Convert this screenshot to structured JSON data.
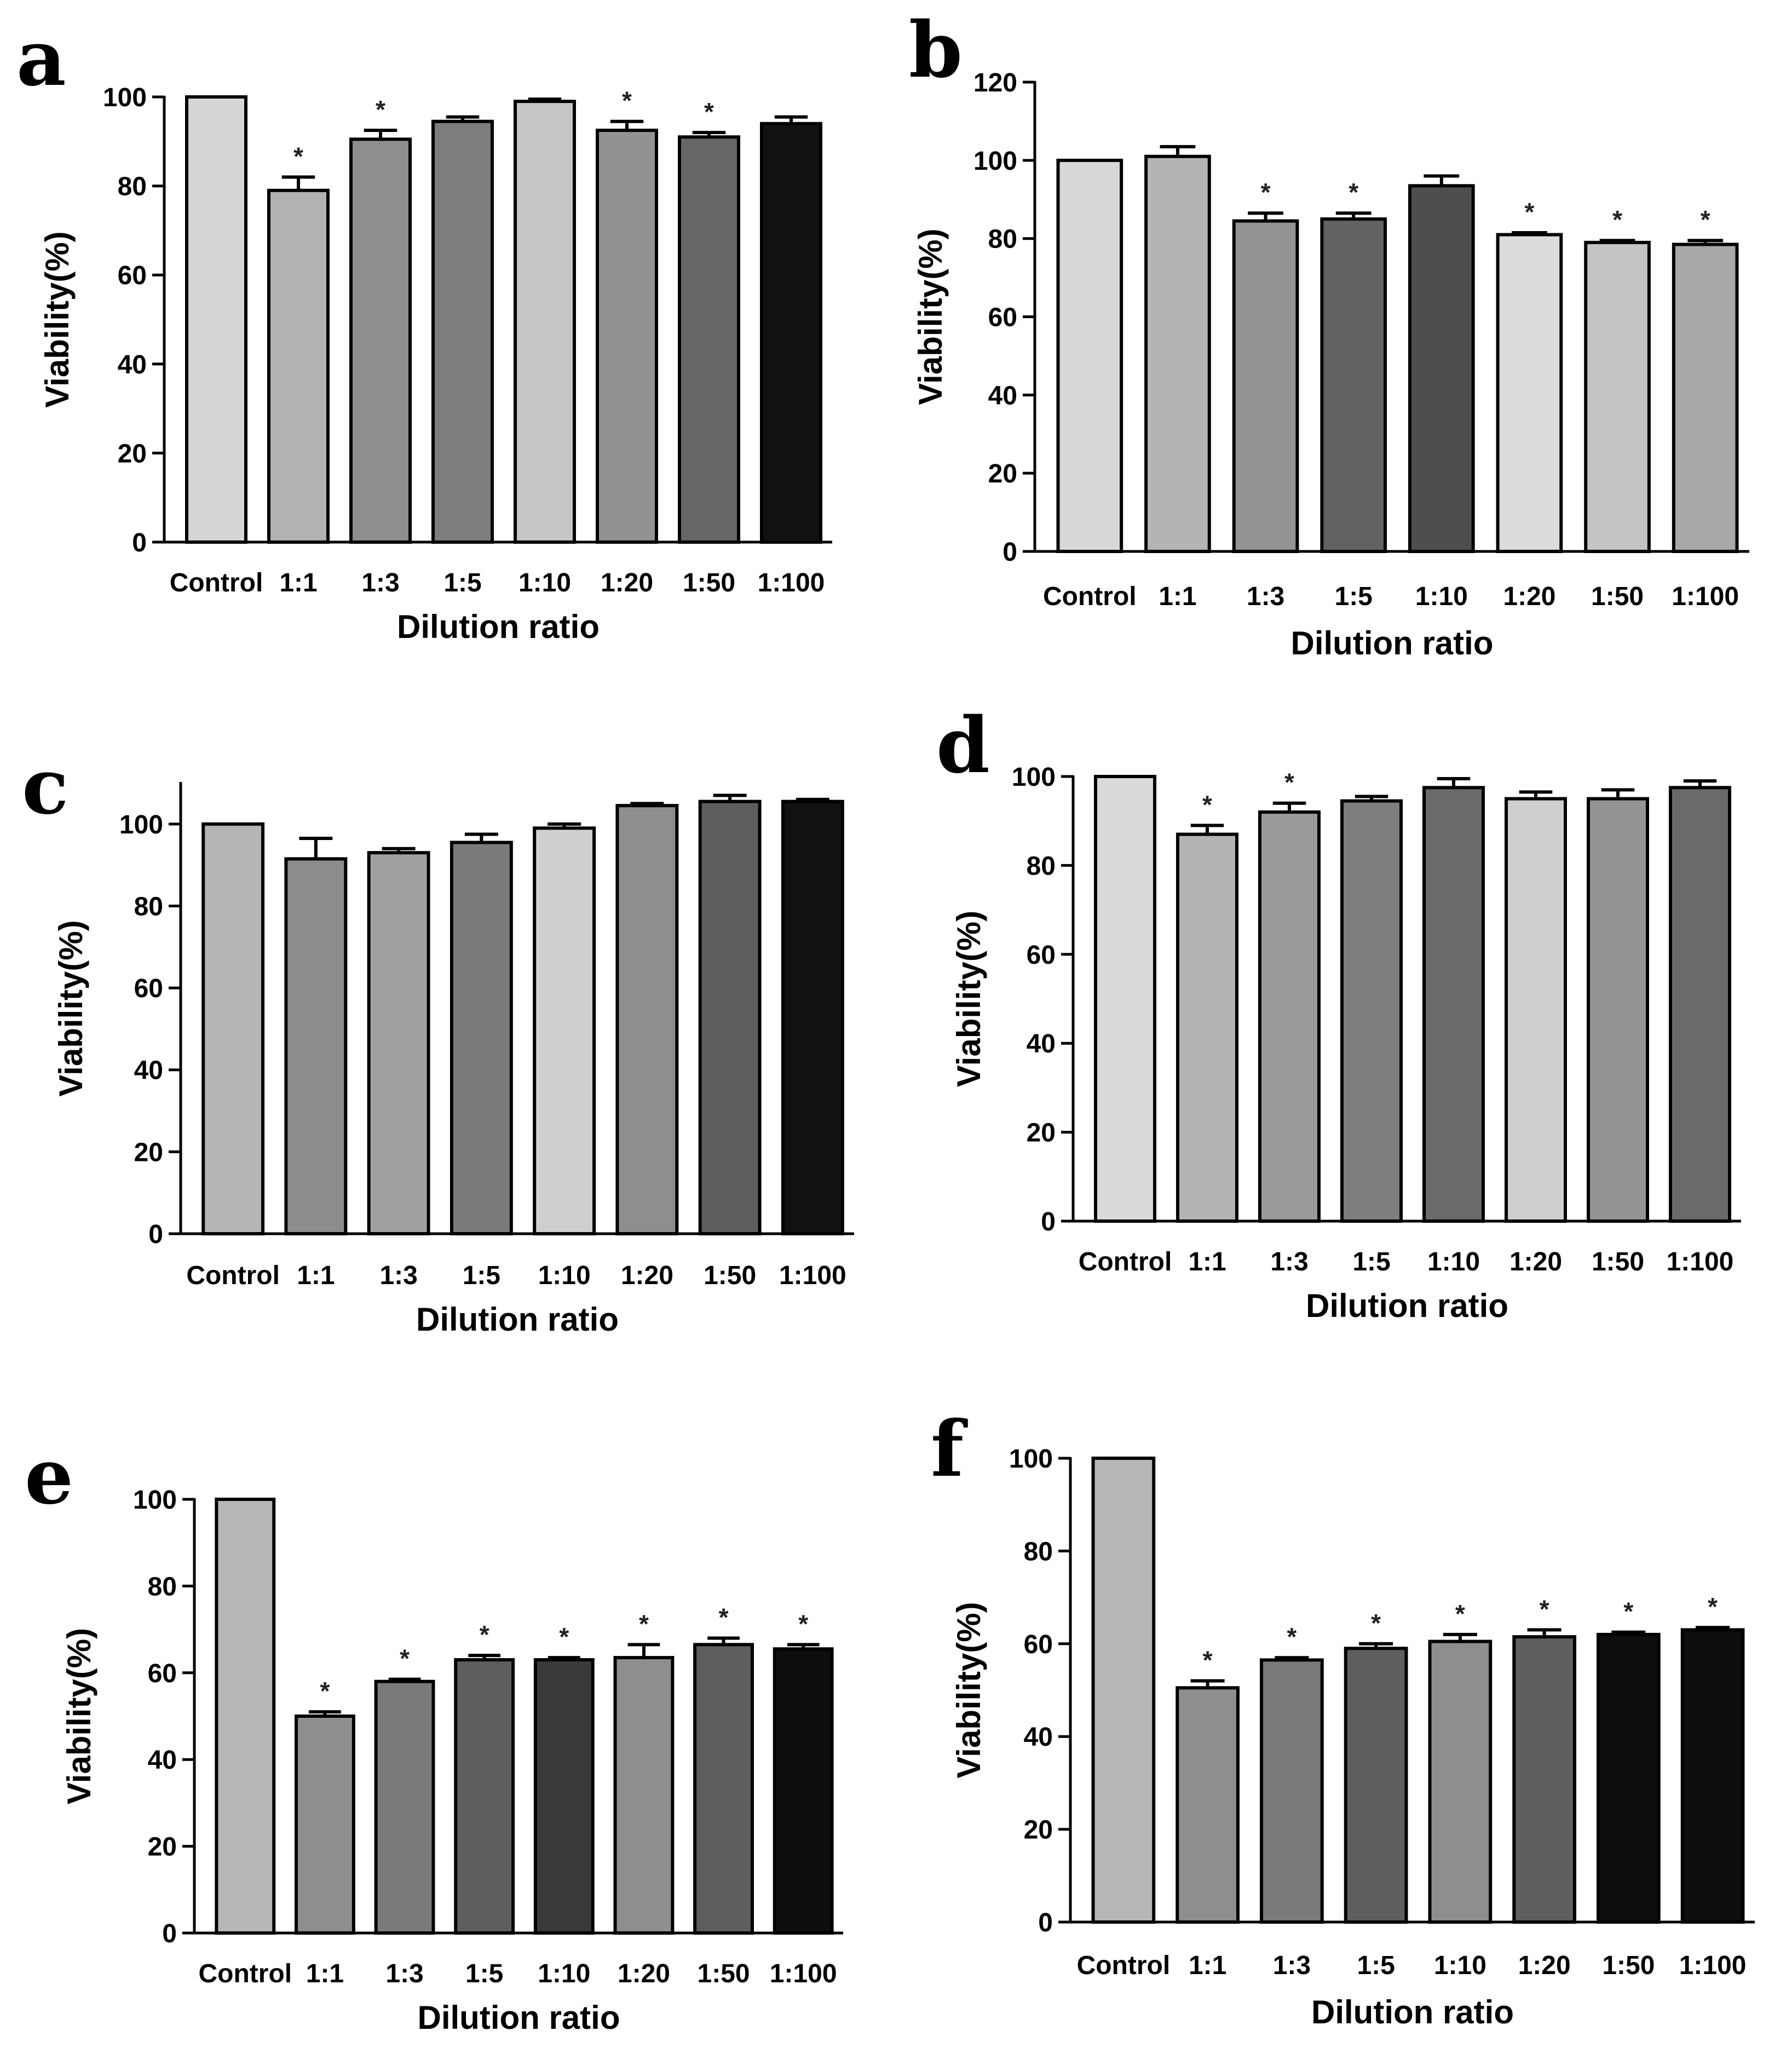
{
  "chart_data": [
    {
      "type": "bar",
      "panel": "a",
      "xlabel": "Dilution ratio",
      "ylabel": "Viability(%)",
      "ylim": [
        0,
        100
      ],
      "yticks": [
        0,
        20,
        40,
        60,
        80,
        100
      ],
      "categories": [
        "Control",
        "1:1",
        "1:3",
        "1:5",
        "1:10",
        "1:20",
        "1:50",
        "1:100"
      ],
      "values": [
        100,
        79,
        90.5,
        94.5,
        99,
        92.5,
        91,
        94
      ],
      "errors": [
        0,
        3,
        2,
        1,
        0.5,
        2,
        1,
        1.5
      ],
      "significance": [
        "",
        "*",
        "*",
        "",
        "",
        "*",
        "*",
        ""
      ],
      "colors": [
        "#d6d6d6",
        "#b2b2b2",
        "#8e8e8e",
        "#7e7e7e",
        "#c6c6c6",
        "#929292",
        "#666666",
        "#111111"
      ]
    },
    {
      "type": "bar",
      "panel": "b",
      "xlabel": "Dilution ratio",
      "ylabel": "Viability(%)",
      "ylim": [
        0,
        120
      ],
      "yticks": [
        0,
        20,
        40,
        60,
        80,
        100,
        120
      ],
      "categories": [
        "Control",
        "1:1",
        "1:3",
        "1:5",
        "1:10",
        "1:20",
        "1:50",
        "1:100"
      ],
      "values": [
        100,
        101,
        84.5,
        85,
        93.5,
        81,
        79,
        78.5
      ],
      "errors": [
        0,
        2.5,
        2,
        1.5,
        2.5,
        0.5,
        0.5,
        1
      ],
      "significance": [
        "",
        "",
        "*",
        "*",
        "",
        "*",
        "*",
        "*"
      ],
      "colors": [
        "#d8d8d8",
        "#b4b4b4",
        "#939393",
        "#626262",
        "#4e4e4e",
        "#dcdcdc",
        "#c4c4c4",
        "#a8a8a8"
      ]
    },
    {
      "type": "bar",
      "panel": "c",
      "xlabel": "Dilution ratio",
      "ylabel": "Viability(%)",
      "ylim": [
        0,
        110
      ],
      "yticks": [
        0,
        20,
        40,
        60,
        80,
        100
      ],
      "categories": [
        "Control",
        "1:1",
        "1:3",
        "1:5",
        "1:10",
        "1:20",
        "1:50",
        "1:100"
      ],
      "values": [
        100,
        91.5,
        93,
        95.5,
        99,
        104.5,
        105.5,
        105.5
      ],
      "errors": [
        0,
        5,
        1,
        2,
        1,
        0.5,
        1.5,
        0.5
      ],
      "significance": [
        "",
        "",
        "",
        "",
        "",
        "",
        "",
        ""
      ],
      "colors": [
        "#b5b5b5",
        "#8c8c8c",
        "#a0a0a0",
        "#7a7a7a",
        "#cfcfcf",
        "#8e8e8e",
        "#5e5e5e",
        "#111111"
      ]
    },
    {
      "type": "bar",
      "panel": "d",
      "xlabel": "Dilution ratio",
      "ylabel": "Viability(%)",
      "ylim": [
        0,
        100
      ],
      "yticks": [
        0,
        20,
        40,
        60,
        80,
        100
      ],
      "categories": [
        "Control",
        "1:1",
        "1:3",
        "1:5",
        "1:10",
        "1:20",
        "1:50",
        "1:100"
      ],
      "values": [
        100,
        87,
        92,
        94.5,
        97.5,
        95,
        95,
        97.5
      ],
      "errors": [
        0,
        2,
        2,
        1,
        2,
        1.5,
        2,
        1.5
      ],
      "significance": [
        "",
        "*",
        "*",
        "",
        "",
        "",
        "",
        ""
      ],
      "colors": [
        "#dadada",
        "#b4b4b4",
        "#9a9a9a",
        "#7e7e7e",
        "#6a6a6a",
        "#cecece",
        "#949494",
        "#6a6a6a"
      ]
    },
    {
      "type": "bar",
      "panel": "e",
      "xlabel": "Dilution ratio",
      "ylabel": "Viability(%)",
      "ylim": [
        0,
        100
      ],
      "yticks": [
        0,
        20,
        40,
        60,
        80,
        100
      ],
      "categories": [
        "Control",
        "1:1",
        "1:3",
        "1:5",
        "1:10",
        "1:20",
        "1:50",
        "1:100"
      ],
      "values": [
        100,
        50,
        58,
        63,
        63,
        63.5,
        66.5,
        65.5
      ],
      "errors": [
        0,
        1,
        0.5,
        1,
        0.5,
        3,
        1.5,
        1
      ],
      "significance": [
        "",
        "*",
        "*",
        "*",
        "*",
        "*",
        "*",
        "*"
      ],
      "colors": [
        "#b7b7b7",
        "#8e8e8e",
        "#7a7a7a",
        "#5e5e5e",
        "#3a3a3a",
        "#8e8e8e",
        "#5e5e5e",
        "#0e0e0e"
      ]
    },
    {
      "type": "bar",
      "panel": "f",
      "xlabel": "Dilution ratio",
      "ylabel": "Viability(%)",
      "ylim": [
        0,
        100
      ],
      "yticks": [
        0,
        20,
        40,
        60,
        80,
        100
      ],
      "categories": [
        "Control",
        "1:1",
        "1:3",
        "1:5",
        "1:10",
        "1:20",
        "1:50",
        "1:100"
      ],
      "values": [
        100,
        50.5,
        56.5,
        59,
        60.5,
        61.5,
        62,
        63
      ],
      "errors": [
        0,
        1.5,
        0.5,
        1,
        1.5,
        1.5,
        0.5,
        0.5
      ],
      "significance": [
        "",
        "*",
        "*",
        "*",
        "*",
        "*",
        "*",
        "*"
      ],
      "colors": [
        "#b7b7b7",
        "#8e8e8e",
        "#7a7a7a",
        "#5e5e5e",
        "#8e8e8e",
        "#5e5e5e",
        "#0e0e0e",
        "#0e0e0e"
      ]
    }
  ]
}
